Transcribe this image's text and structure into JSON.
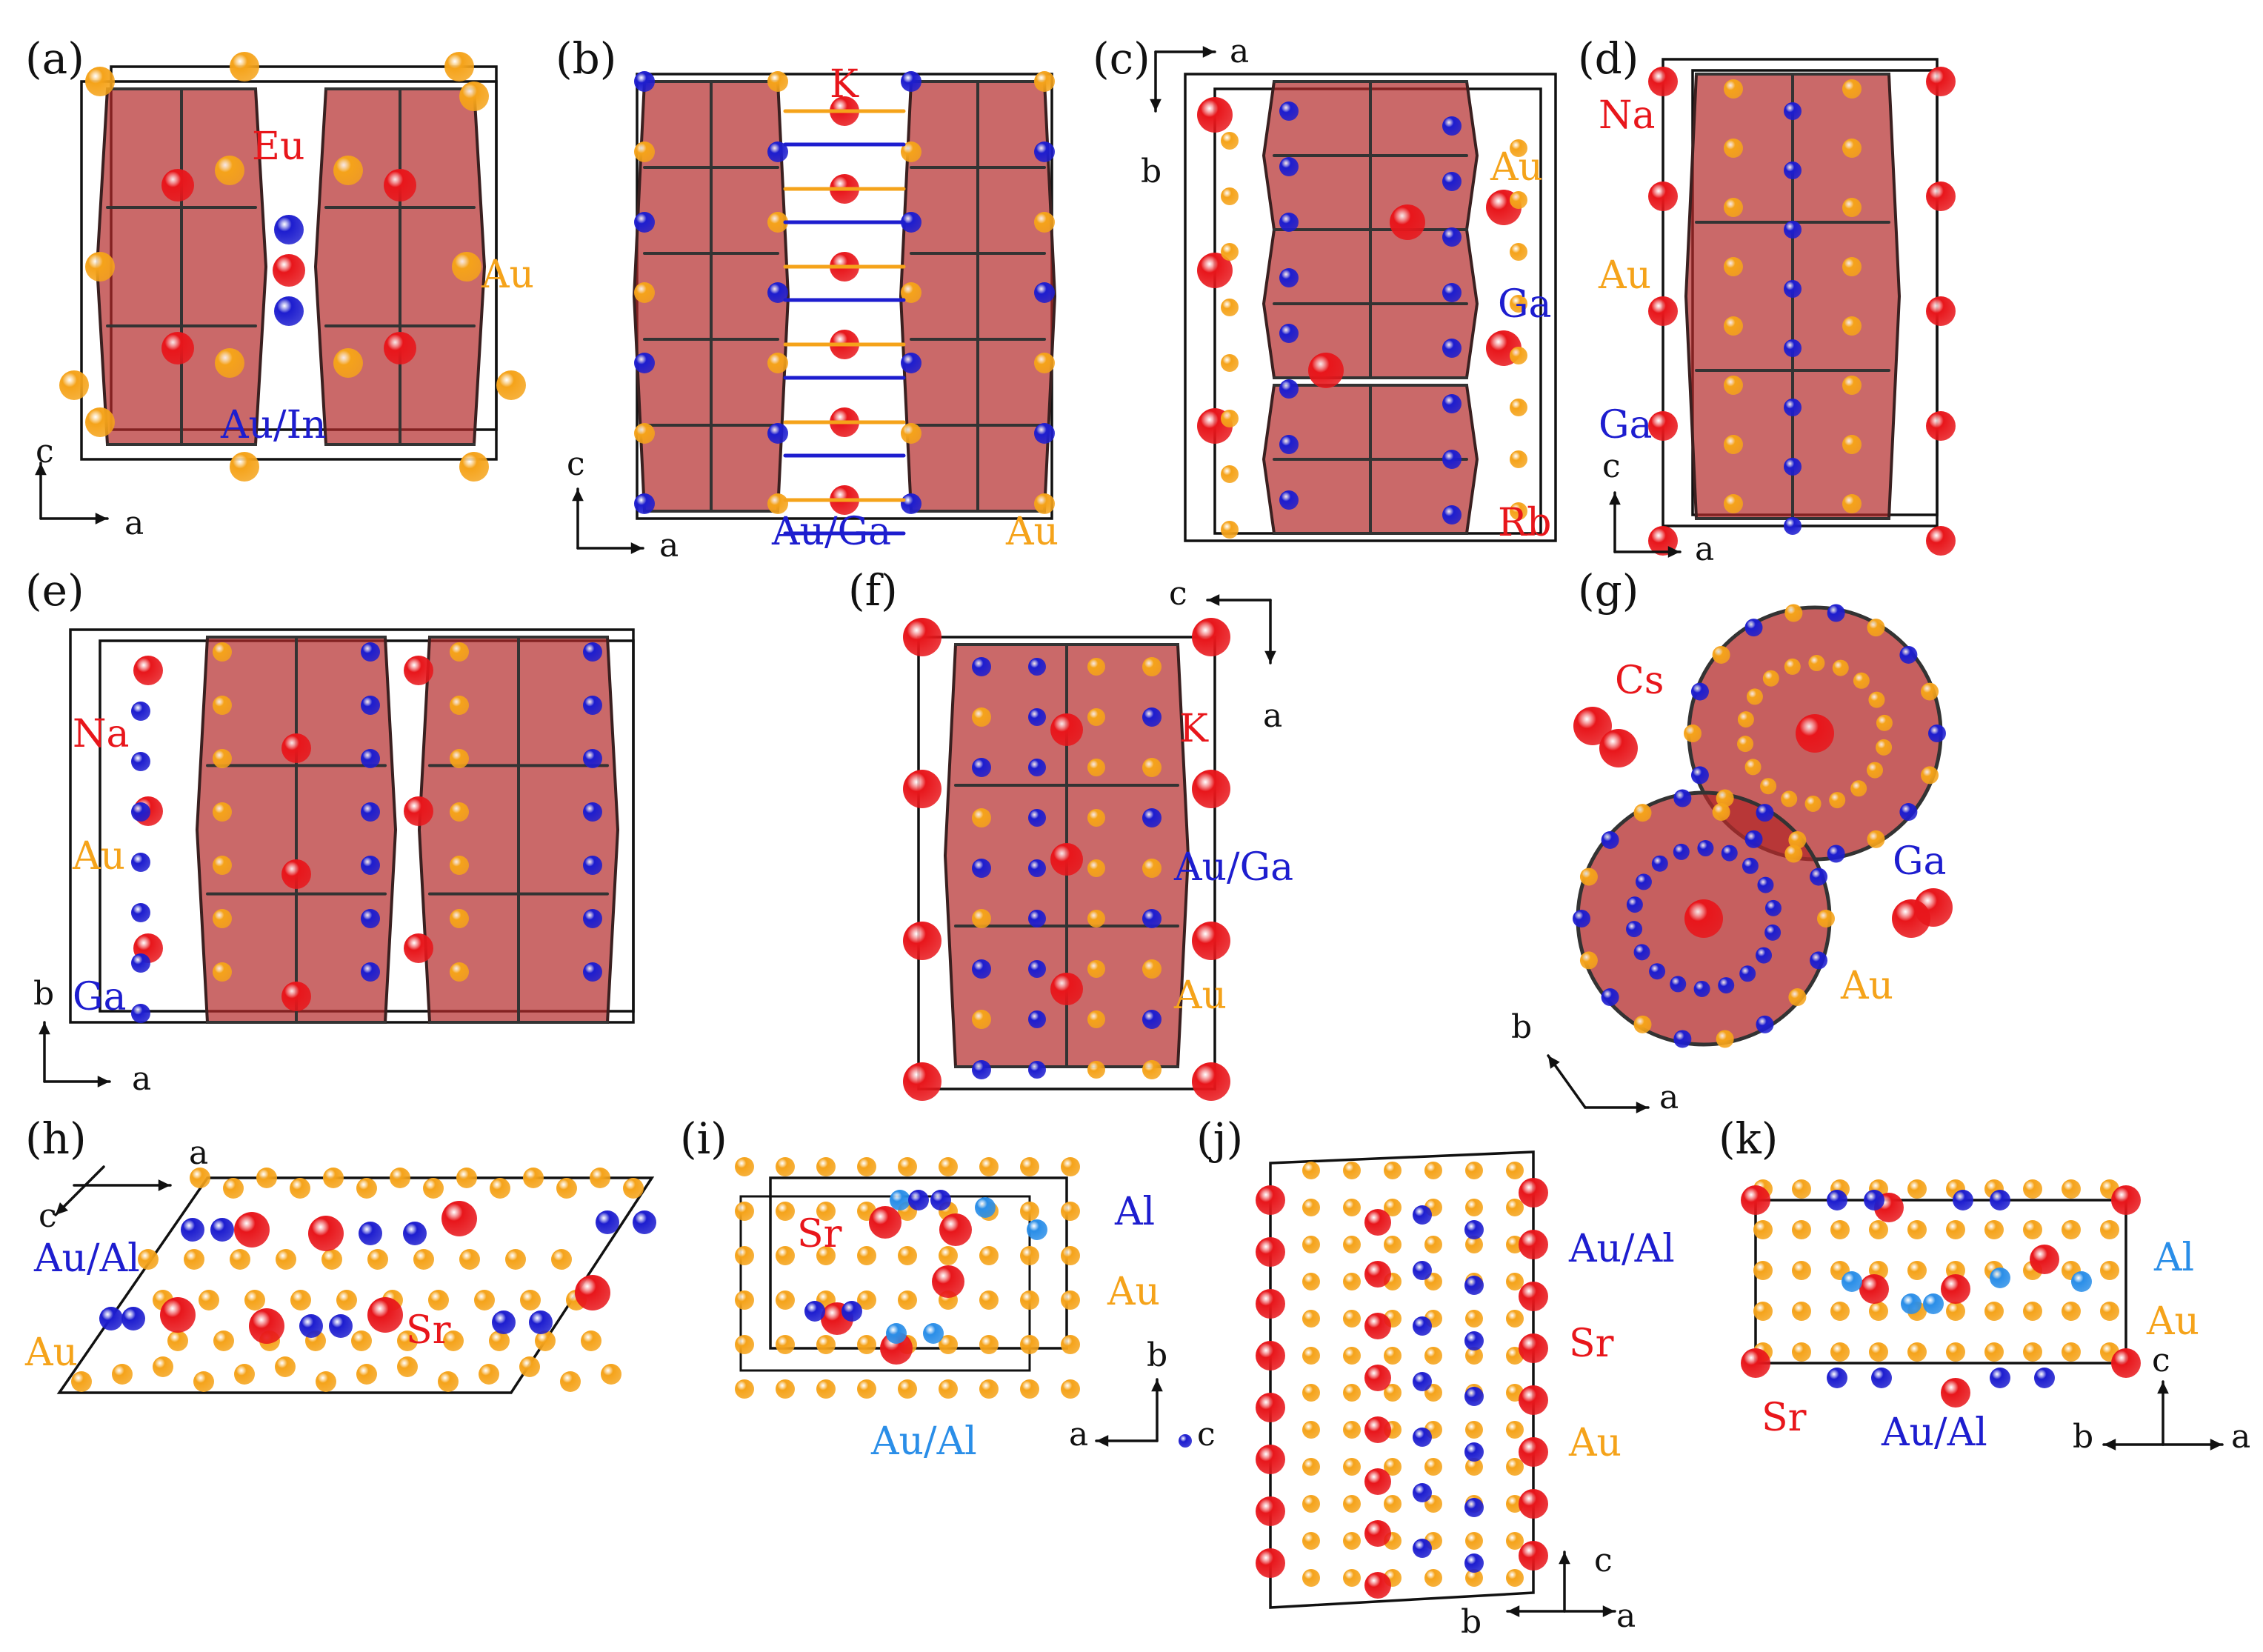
{
  "colors": {
    "red_atom": "#e8161b",
    "au_atom": "#f5a31a",
    "blue_atom": "#1d1dcf",
    "light_blue_atom": "#2a8ee8",
    "polyhedron": "#b32a2a",
    "bond": "#333333"
  },
  "panels": [
    {
      "id": "a",
      "label": "(a)",
      "elements": [
        {
          "text": "Eu",
          "color": "red"
        },
        {
          "text": "Au",
          "color": "gold"
        },
        {
          "text": "Au/In",
          "color": "blue"
        }
      ],
      "axes": [
        "c",
        "a"
      ]
    },
    {
      "id": "b",
      "label": "(b)",
      "elements": [
        {
          "text": "K",
          "color": "red"
        },
        {
          "text": "Au/Ga",
          "color": "blue"
        },
        {
          "text": "Au",
          "color": "gold"
        }
      ],
      "axes": [
        "c",
        "a"
      ]
    },
    {
      "id": "c",
      "label": "(c)",
      "elements": [
        {
          "text": "Au",
          "color": "gold"
        },
        {
          "text": "Ga",
          "color": "blue"
        },
        {
          "text": "Rb",
          "color": "red"
        }
      ],
      "axes": [
        "a",
        "b"
      ]
    },
    {
      "id": "d",
      "label": "(d)",
      "elements": [
        {
          "text": "Na",
          "color": "red"
        },
        {
          "text": "Au",
          "color": "gold"
        },
        {
          "text": "Ga",
          "color": "blue"
        }
      ],
      "axes": [
        "c",
        "a"
      ]
    },
    {
      "id": "e",
      "label": "(e)",
      "elements": [
        {
          "text": "Na",
          "color": "red"
        },
        {
          "text": "Au",
          "color": "gold"
        },
        {
          "text": "Ga",
          "color": "blue"
        }
      ],
      "axes": [
        "b",
        "a"
      ]
    },
    {
      "id": "f",
      "label": "(f)",
      "elements": [
        {
          "text": "K",
          "color": "red"
        },
        {
          "text": "Au/Ga",
          "color": "blue"
        },
        {
          "text": "Au",
          "color": "gold"
        }
      ],
      "axes": [
        "c",
        "a"
      ]
    },
    {
      "id": "g",
      "label": "(g)",
      "elements": [
        {
          "text": "Cs",
          "color": "red"
        },
        {
          "text": "Ga",
          "color": "blue"
        },
        {
          "text": "Au",
          "color": "gold"
        }
      ],
      "axes": [
        "b",
        "a"
      ]
    },
    {
      "id": "h",
      "label": "(h)",
      "elements": [
        {
          "text": "Au/Al",
          "color": "blue"
        },
        {
          "text": "Au",
          "color": "gold"
        },
        {
          "text": "Sr",
          "color": "red"
        }
      ],
      "axes": [
        "a",
        "c"
      ]
    },
    {
      "id": "i",
      "label": "(i)",
      "elements": [
        {
          "text": "Sr",
          "color": "red"
        },
        {
          "text": "Al",
          "color": "blue"
        },
        {
          "text": "Au",
          "color": "gold"
        },
        {
          "text": "Au/Al",
          "color": "lblue"
        }
      ],
      "axes": [
        "b",
        "a",
        "c"
      ]
    },
    {
      "id": "j",
      "label": "(j)",
      "elements": [
        {
          "text": "Au/Al",
          "color": "blue"
        },
        {
          "text": "Sr",
          "color": "red"
        },
        {
          "text": "Au",
          "color": "gold"
        }
      ],
      "axes": [
        "c",
        "b",
        "a"
      ]
    },
    {
      "id": "k",
      "label": "(k)",
      "elements": [
        {
          "text": "Al",
          "color": "lblue"
        },
        {
          "text": "Au",
          "color": "gold"
        },
        {
          "text": "Sr",
          "color": "red"
        },
        {
          "text": "Au/Al",
          "color": "blue"
        }
      ],
      "axes": [
        "c",
        "b",
        "a"
      ]
    }
  ]
}
